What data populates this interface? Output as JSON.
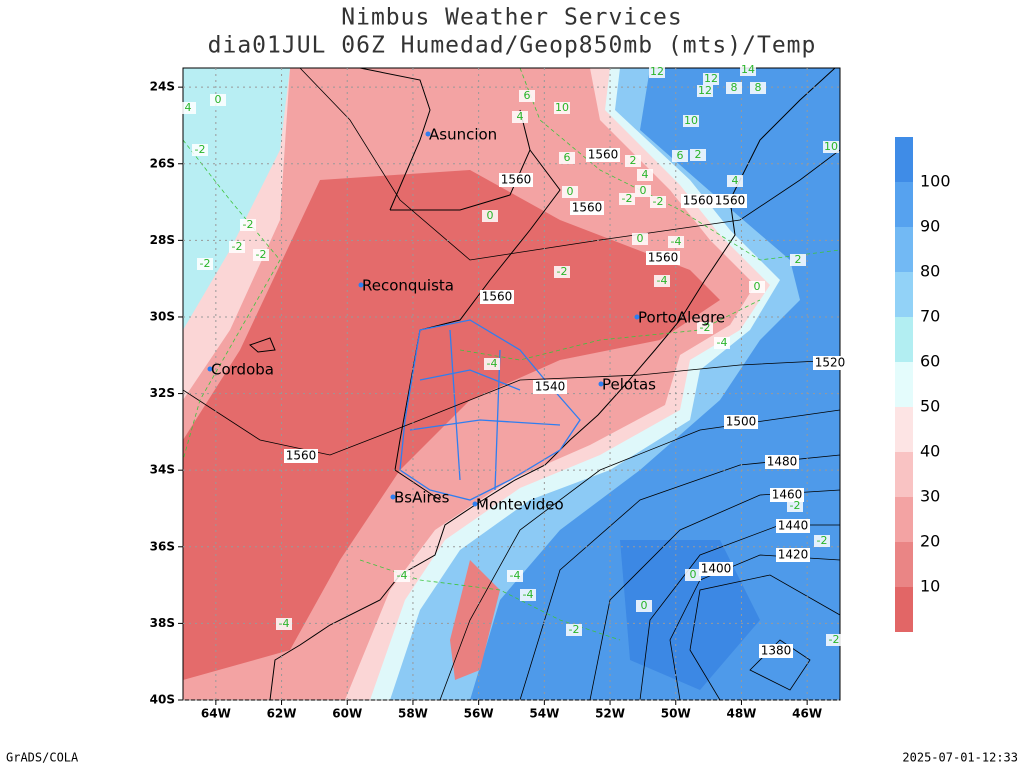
{
  "header": {
    "title": "Nimbus Weather Services",
    "subtitle": "dia01JUL 06Z Humedad/Geop850mb (mts)/Temp"
  },
  "map": {
    "lat_labels": [
      "24S",
      "26S",
      "28S",
      "30S",
      "32S",
      "34S",
      "36S",
      "38S",
      "40S"
    ],
    "lon_labels": [
      "64W",
      "62W",
      "60W",
      "58W",
      "56W",
      "54W",
      "52W",
      "50W",
      "48W",
      "46W"
    ],
    "cities": [
      "Asuncion",
      "Reconquista",
      "Cordoba",
      "PortoAlegre",
      "Pelotas",
      "BsAires",
      "Montevideo"
    ],
    "height_labels": [
      "1560",
      "1560",
      "1560",
      "1560",
      "1560",
      "1560",
      "1560",
      "1560",
      "1540",
      "1520",
      "1500",
      "1480",
      "1460",
      "1440",
      "1420",
      "1400",
      "1380"
    ],
    "temperature_labels": [
      "12",
      "12",
      "14",
      "12",
      "8",
      "8",
      "10",
      "6",
      "10",
      "4",
      "6",
      "2",
      "6",
      "2",
      "4",
      "4",
      "0",
      "-2",
      "0",
      "-2",
      "0",
      "0",
      "-4",
      "-2",
      "-4",
      "2",
      "0",
      "-2",
      "-4",
      "-4",
      "-2",
      "-2",
      "-2",
      "-2",
      "-2",
      "0",
      "4",
      "-4",
      "-4",
      "-4",
      "-2",
      "0",
      "0",
      "-2",
      "-2",
      "-4",
      "-2",
      "10"
    ]
  },
  "colorbar": {
    "labels": [
      10,
      20,
      30,
      40,
      50,
      60,
      70,
      80,
      90,
      100
    ],
    "colors": [
      "#e26666",
      "#ea8585",
      "#f3a3a3",
      "#f9c3c3",
      "#fde4e4",
      "#e4fcfc",
      "#b2eef2",
      "#92d2f7",
      "#72b9f4",
      "#56a2ef",
      "#3f8ce7"
    ]
  },
  "footer": {
    "left": "GrADS/COLA",
    "right": "2025-07-01-12:33"
  }
}
